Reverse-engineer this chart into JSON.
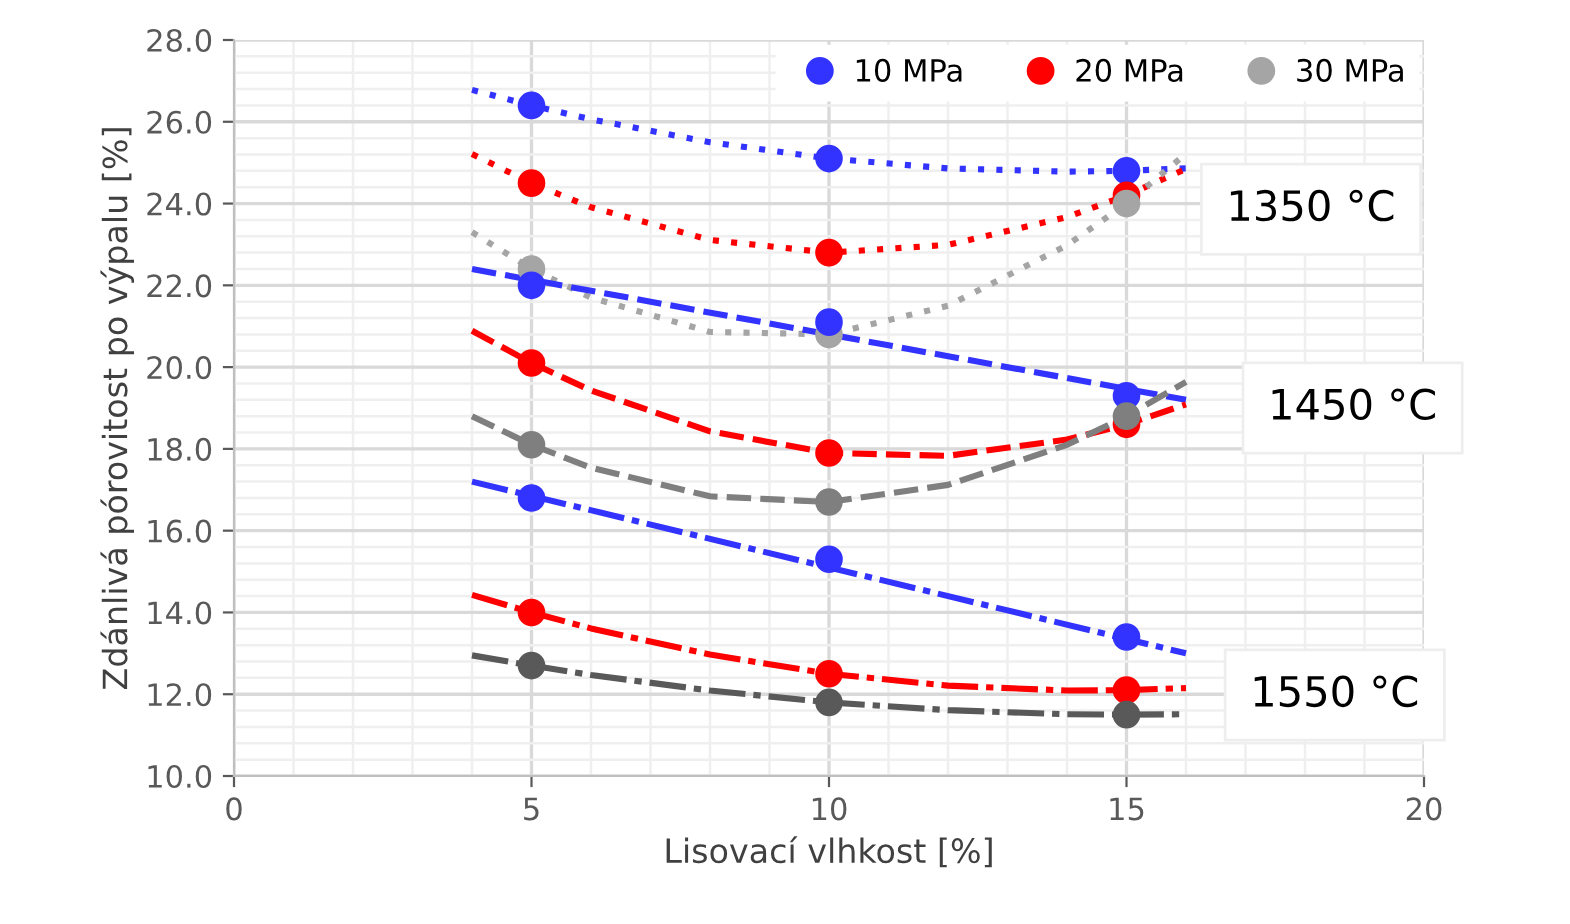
{
  "chart_data": {
    "type": "scatter",
    "xlabel": "Lisovací vlhkost [%]",
    "ylabel": "Zdánlivá pórovitost po výpalu [%]",
    "xlim": [
      0,
      20
    ],
    "xticks": [
      0,
      5,
      10,
      15,
      20
    ],
    "ylim": [
      10,
      28
    ],
    "yticks": [
      {
        "value": 10,
        "label": "10.0"
      },
      {
        "value": 12,
        "label": "12.0"
      },
      {
        "value": 14,
        "label": "14.0"
      },
      {
        "value": 16,
        "label": "16.0"
      },
      {
        "value": 18,
        "label": "18.0"
      },
      {
        "value": 20,
        "label": "20.0"
      },
      {
        "value": 22,
        "label": "22.0"
      },
      {
        "value": 24,
        "label": "24.0"
      },
      {
        "value": 26,
        "label": "26.0"
      },
      {
        "value": 28,
        "label": "28.0"
      }
    ],
    "grid": true,
    "legend": "top right",
    "marker": "circle",
    "annotations": [
      "1350 °C",
      "1450 °C",
      "1550 °C"
    ],
    "series": [
      {
        "type": "line",
        "color": "#3333ff",
        "line_style": "dotted",
        "marker": "none",
        "x": [
          4,
          5,
          6,
          8,
          10,
          12,
          14,
          15,
          16
        ],
        "values": [
          26.78,
          26.4,
          26.06,
          25.5,
          25.1,
          24.86,
          24.78,
          24.8,
          24.86
        ]
      },
      {
        "type": "line",
        "color": "#ff0000",
        "line_style": "dotted",
        "marker": "none",
        "x": [
          4,
          5,
          6,
          8,
          10,
          12,
          14,
          15,
          16
        ],
        "values": [
          25.21,
          24.5,
          23.91,
          23.11,
          22.8,
          22.99,
          23.67,
          24.2,
          24.85
        ]
      },
      {
        "type": "line",
        "color": "#a5a5a5",
        "line_style": "dotted",
        "marker": "none",
        "x": [
          4,
          5,
          6,
          8,
          10,
          12,
          14,
          15,
          16
        ],
        "values": [
          23.3,
          22.4,
          21.7,
          20.86,
          20.8,
          21.5,
          22.98,
          24.0,
          25.22
        ]
      },
      {
        "type": "line",
        "color": "#3333ff",
        "line_style": "dashed",
        "marker": "none",
        "x": [
          4,
          16
        ],
        "values": [
          22.4,
          19.2
        ]
      },
      {
        "type": "line",
        "color": "#ff0000",
        "line_style": "dashed",
        "marker": "none",
        "x": [
          4,
          5,
          6,
          8,
          10,
          12,
          14,
          15,
          16
        ],
        "values": [
          20.89,
          20.1,
          19.43,
          18.43,
          17.9,
          17.83,
          18.23,
          18.6,
          19.09
        ]
      },
      {
        "type": "line",
        "color": "#7f7f7f",
        "line_style": "dashed",
        "marker": "none",
        "x": [
          4,
          5,
          6,
          8,
          10,
          12,
          14,
          15,
          16
        ],
        "values": [
          18.8,
          18.1,
          17.54,
          16.84,
          16.7,
          17.12,
          18.1,
          18.8,
          19.64
        ]
      },
      {
        "type": "line",
        "color": "#3333ff",
        "line_style": "dashdot",
        "marker": "none",
        "x": [
          4,
          16
        ],
        "values": [
          17.2,
          13.0
        ]
      },
      {
        "type": "line",
        "color": "#ff0000",
        "line_style": "dashdot",
        "marker": "none",
        "x": [
          4,
          5,
          6,
          8,
          10,
          12,
          14,
          15,
          16
        ],
        "values": [
          14.43,
          14.0,
          13.61,
          12.97,
          12.5,
          12.21,
          12.09,
          12.1,
          12.15
        ]
      },
      {
        "type": "line",
        "color": "#595959",
        "line_style": "dashdot",
        "marker": "none",
        "x": [
          4,
          5,
          6,
          8,
          10,
          12,
          14,
          15,
          16
        ],
        "values": [
          12.95,
          12.7,
          12.47,
          12.09,
          11.8,
          11.61,
          11.51,
          11.5,
          11.51
        ]
      },
      {
        "name": "10 MPa",
        "color": "#3333ff",
        "x": [
          5,
          10,
          15
        ],
        "values": [
          26.4,
          25.1,
          24.8
        ]
      },
      {
        "name": "20 MPa",
        "color": "#ff0000",
        "x": [
          5,
          10,
          15
        ],
        "values": [
          24.5,
          22.8,
          24.2
        ]
      },
      {
        "name": "30 MPa",
        "color": "#a5a5a5",
        "x": [
          5,
          10,
          15
        ],
        "values": [
          22.4,
          20.8,
          24.0
        ]
      },
      {
        "color": "#3333ff",
        "x": [
          5,
          10,
          15
        ],
        "values": [
          22.0,
          21.1,
          19.3
        ]
      },
      {
        "color": "#ff0000",
        "x": [
          5,
          10,
          15
        ],
        "values": [
          20.1,
          17.9,
          18.6
        ]
      },
      {
        "color": "#7f7f7f",
        "x": [
          5,
          10,
          15
        ],
        "values": [
          18.1,
          16.7,
          18.8
        ]
      },
      {
        "color": "#3333ff",
        "x": [
          5,
          10,
          15
        ],
        "values": [
          16.8,
          15.3,
          13.4
        ]
      },
      {
        "color": "#ff0000",
        "x": [
          5,
          10,
          15
        ],
        "values": [
          14.0,
          12.5,
          12.1
        ]
      },
      {
        "color": "#595959",
        "x": [
          5,
          10,
          15
        ],
        "values": [
          12.7,
          11.8,
          11.5
        ]
      }
    ]
  }
}
